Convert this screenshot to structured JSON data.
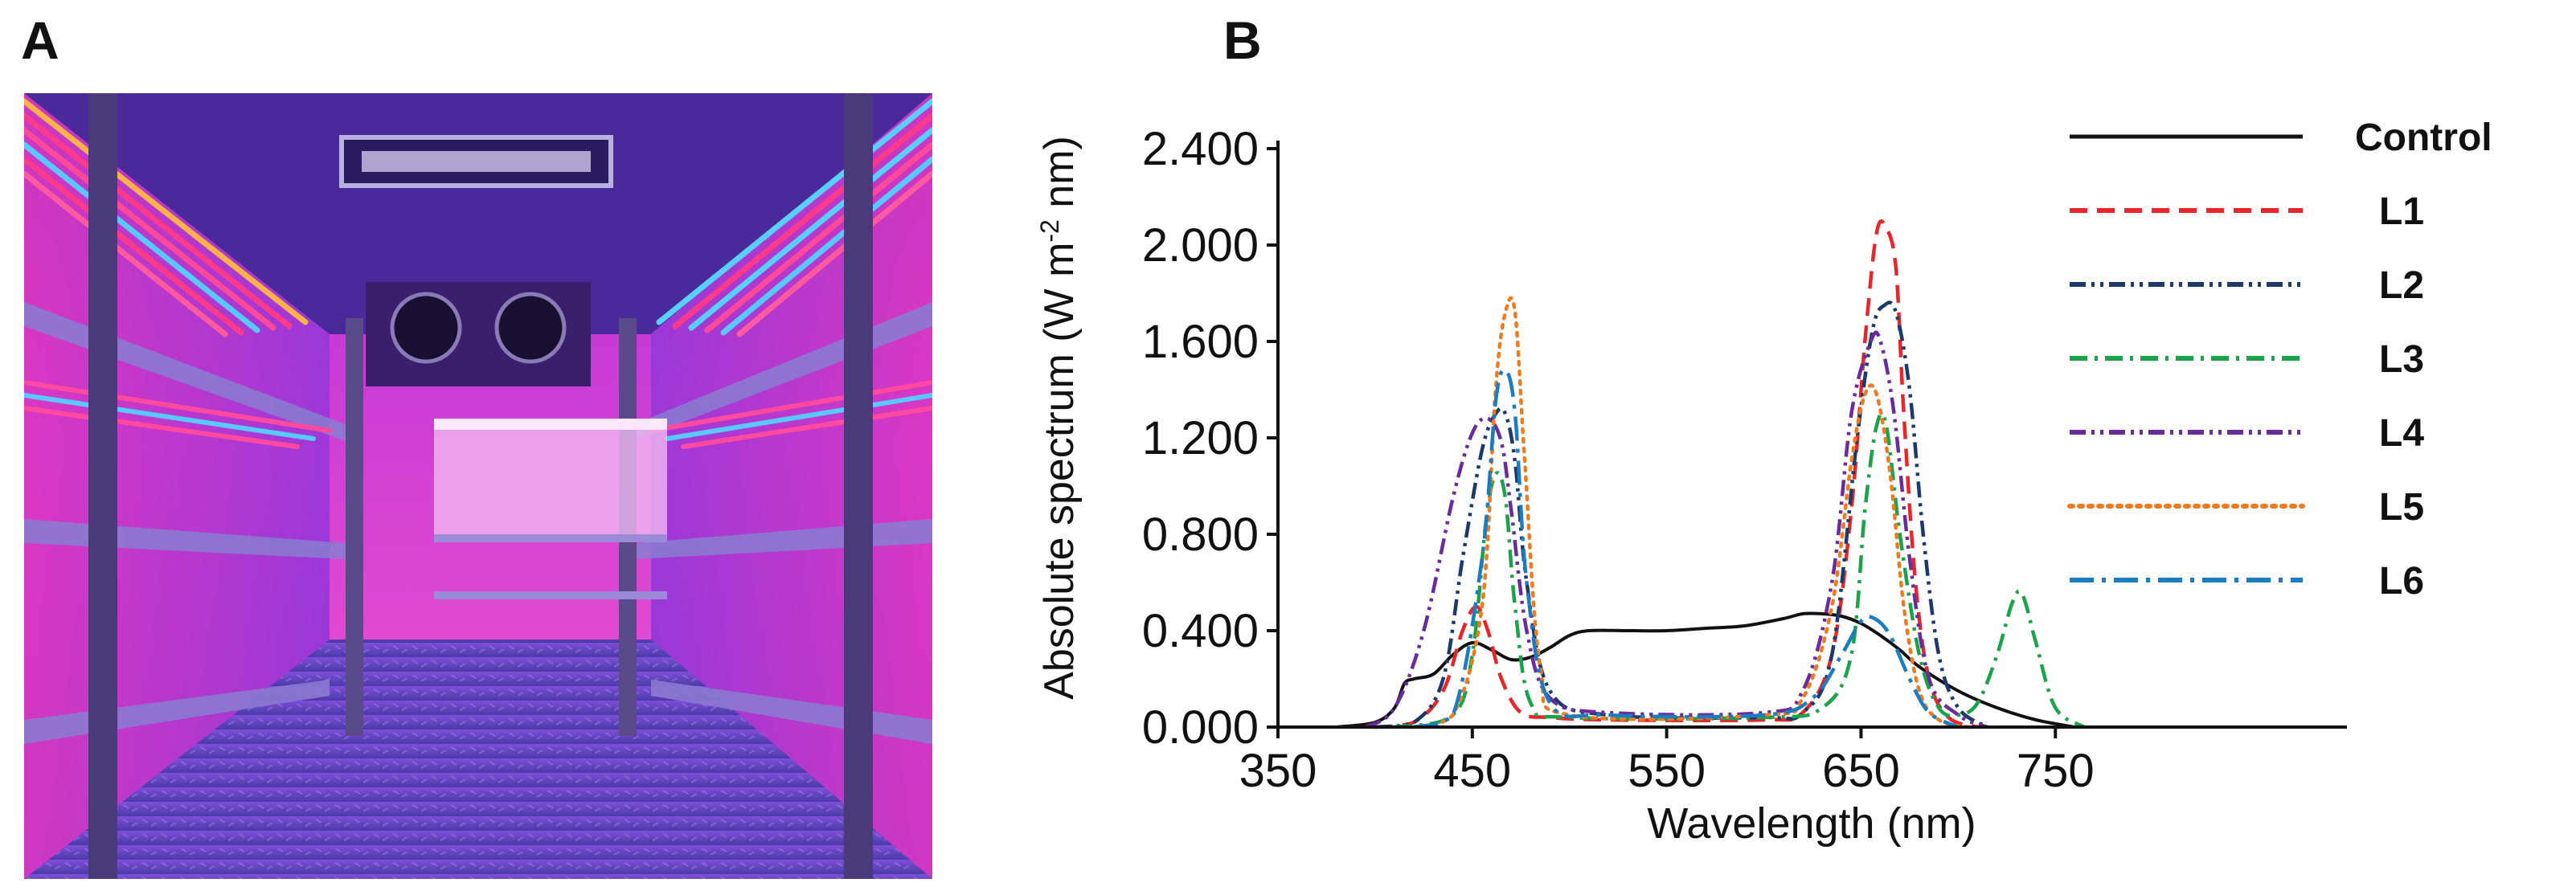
{
  "panels": {
    "photo_label": "A",
    "chart_label": "B"
  },
  "colors": {
    "control": "#111111",
    "l1": "#e8262a",
    "l2": "#1b3a6b",
    "l3": "#1aa34a",
    "l4": "#6a2c9a",
    "l5": "#f07a1e",
    "l6": "#1c7cc2",
    "room_purple": "#7b2fd0",
    "room_magenta": "#e236c8"
  },
  "chart_data": {
    "type": "line",
    "title": "",
    "xlabel": "Wavelength (nm)",
    "ylabel": "Absolute spectrum (W m-2 nm)",
    "ylabel_main": "Absolute spectrum (W m",
    "ylabel_sup": "-2",
    "ylabel_end": " nm)",
    "xlim": [
      350,
      900
    ],
    "ylim": [
      0,
      2.4
    ],
    "xticks": [
      350,
      450,
      550,
      650,
      750
    ],
    "xtick_labels": [
      "350",
      "450",
      "550",
      "650",
      "750"
    ],
    "yticks": [
      0,
      0.4,
      0.8,
      1.2,
      1.6,
      2.0,
      2.4
    ],
    "ytick_labels": [
      "0.000",
      "0.400",
      "0.800",
      "1.200",
      "1.600",
      "2.000",
      "2.400"
    ],
    "grid": false,
    "legend_position": "right",
    "series": [
      {
        "name": "Control",
        "dash": "solid",
        "x": [
          380,
          400,
          410,
          415,
          420,
          430,
          440,
          450,
          460,
          470,
          480,
          490,
          500,
          510,
          530,
          550,
          570,
          590,
          610,
          620,
          630,
          640,
          650,
          660,
          670,
          680,
          700,
          720,
          740,
          760
        ],
        "y": [
          0.0,
          0.02,
          0.08,
          0.18,
          0.2,
          0.22,
          0.3,
          0.35,
          0.32,
          0.28,
          0.29,
          0.33,
          0.38,
          0.4,
          0.4,
          0.4,
          0.41,
          0.42,
          0.45,
          0.47,
          0.47,
          0.46,
          0.43,
          0.38,
          0.32,
          0.25,
          0.15,
          0.08,
          0.03,
          0.0
        ]
      },
      {
        "name": "L1",
        "dash": "dashed",
        "x": [
          400,
          420,
          435,
          445,
          452,
          458,
          465,
          475,
          490,
          520,
          600,
          620,
          635,
          645,
          652,
          658,
          663,
          668,
          672,
          678,
          685,
          695,
          710
        ],
        "y": [
          0.0,
          0.02,
          0.15,
          0.4,
          0.5,
          0.4,
          0.2,
          0.06,
          0.04,
          0.03,
          0.03,
          0.06,
          0.3,
          0.9,
          1.6,
          2.05,
          2.07,
          1.9,
          1.3,
          0.6,
          0.2,
          0.04,
          0.0
        ]
      },
      {
        "name": "L2",
        "dash": "dash-dot-dot",
        "x": [
          400,
          420,
          435,
          445,
          455,
          462,
          467,
          472,
          478,
          490,
          520,
          600,
          620,
          635,
          648,
          656,
          662,
          668,
          675,
          682,
          690,
          700,
          715
        ],
        "y": [
          0.0,
          0.02,
          0.2,
          0.7,
          1.15,
          1.3,
          1.3,
          1.1,
          0.6,
          0.15,
          0.05,
          0.04,
          0.06,
          0.3,
          1.2,
          1.65,
          1.75,
          1.72,
          1.4,
          0.8,
          0.3,
          0.08,
          0.0
        ]
      },
      {
        "name": "L3",
        "dash": "dash-dot",
        "x": [
          410,
          440,
          450,
          457,
          462,
          467,
          472,
          480,
          500,
          600,
          630,
          645,
          652,
          658,
          663,
          670,
          680,
          690,
          700,
          710,
          720,
          728,
          733,
          740,
          750,
          765
        ],
        "y": [
          0.0,
          0.05,
          0.3,
          0.85,
          1.05,
          0.95,
          0.5,
          0.1,
          0.04,
          0.04,
          0.08,
          0.3,
          0.9,
          1.25,
          1.25,
          0.8,
          0.3,
          0.08,
          0.05,
          0.1,
          0.3,
          0.52,
          0.55,
          0.35,
          0.08,
          0.0
        ]
      },
      {
        "name": "L4",
        "dash": "dash-dot-dot",
        "x": [
          395,
          410,
          425,
          440,
          450,
          458,
          465,
          470,
          478,
          490,
          520,
          600,
          620,
          635,
          645,
          655,
          660,
          667,
          675,
          685,
          700,
          715
        ],
        "y": [
          0.0,
          0.08,
          0.4,
          0.95,
          1.22,
          1.28,
          1.18,
          0.9,
          0.4,
          0.12,
          0.06,
          0.06,
          0.15,
          0.6,
          1.3,
          1.6,
          1.6,
          1.3,
          0.7,
          0.2,
          0.05,
          0.0
        ]
      },
      {
        "name": "L5",
        "dash": "dotted",
        "x": [
          420,
          440,
          455,
          462,
          467,
          472,
          477,
          485,
          500,
          600,
          620,
          635,
          645,
          652,
          658,
          665,
          672,
          680,
          690,
          705
        ],
        "y": [
          0.0,
          0.05,
          0.5,
          1.4,
          1.72,
          1.72,
          1.1,
          0.25,
          0.05,
          0.05,
          0.12,
          0.5,
          1.1,
          1.38,
          1.38,
          1.05,
          0.5,
          0.15,
          0.03,
          0.0
        ]
      },
      {
        "name": "L6",
        "dash": "long-dash-dot",
        "x": [
          420,
          440,
          455,
          462,
          467,
          472,
          478,
          490,
          520,
          600,
          625,
          640,
          650,
          657,
          665,
          675,
          685,
          700
        ],
        "y": [
          0.0,
          0.05,
          0.7,
          1.35,
          1.48,
          1.3,
          0.6,
          0.1,
          0.05,
          0.05,
          0.12,
          0.3,
          0.44,
          0.45,
          0.38,
          0.2,
          0.06,
          0.0
        ]
      }
    ]
  }
}
